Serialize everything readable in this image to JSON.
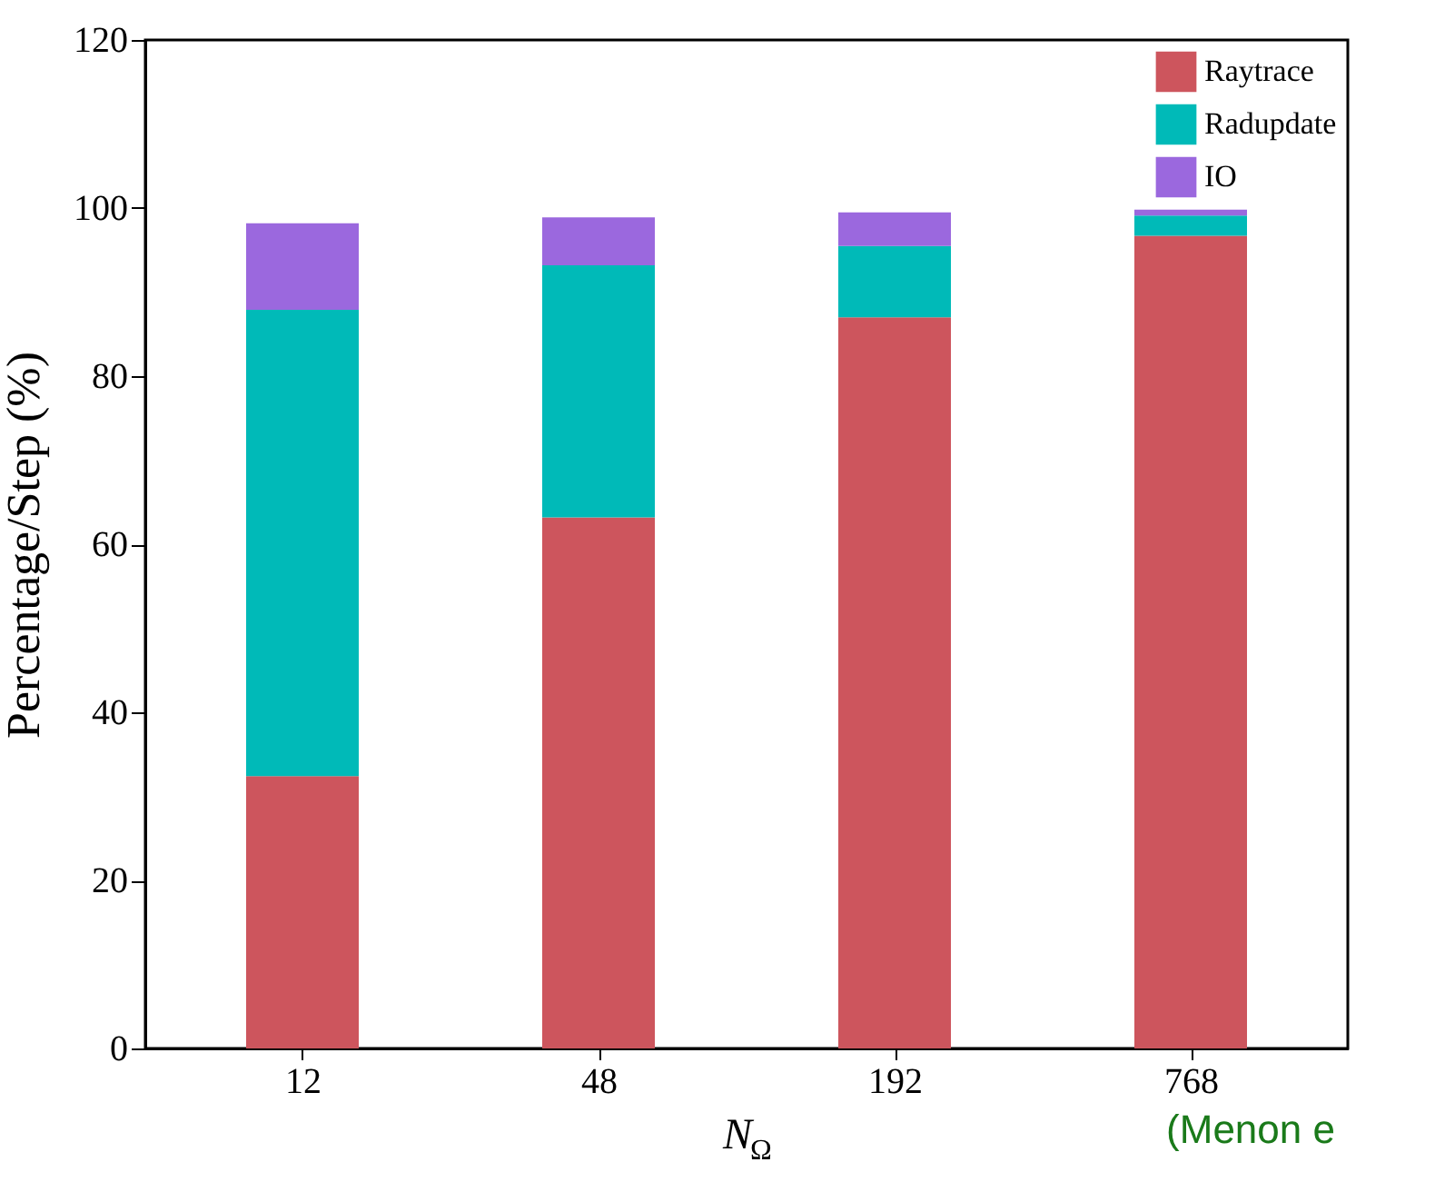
{
  "chart_data": {
    "type": "bar",
    "stacked": true,
    "xlabel": "N$_{Ω}$",
    "ylabel": "Percentage/Step (%)",
    "categories": [
      "12",
      "48",
      "192",
      "768"
    ],
    "series": [
      {
        "name": "Raytrace",
        "color": "#cd555d",
        "values": [
          32.4,
          63.2,
          87.0,
          96.7
        ]
      },
      {
        "name": "Radupdate",
        "color": "#00bab8",
        "values": [
          55.5,
          30.0,
          8.5,
          2.4
        ]
      },
      {
        "name": "IO",
        "color": "#9b68de",
        "values": [
          10.3,
          5.7,
          4.0,
          0.7
        ]
      }
    ],
    "ylim": [
      0,
      120
    ],
    "yticks": [
      0,
      20,
      40,
      60,
      80,
      100,
      120
    ],
    "grid": false,
    "legend": "top right",
    "annotations": [
      "(Menon e"
    ]
  }
}
